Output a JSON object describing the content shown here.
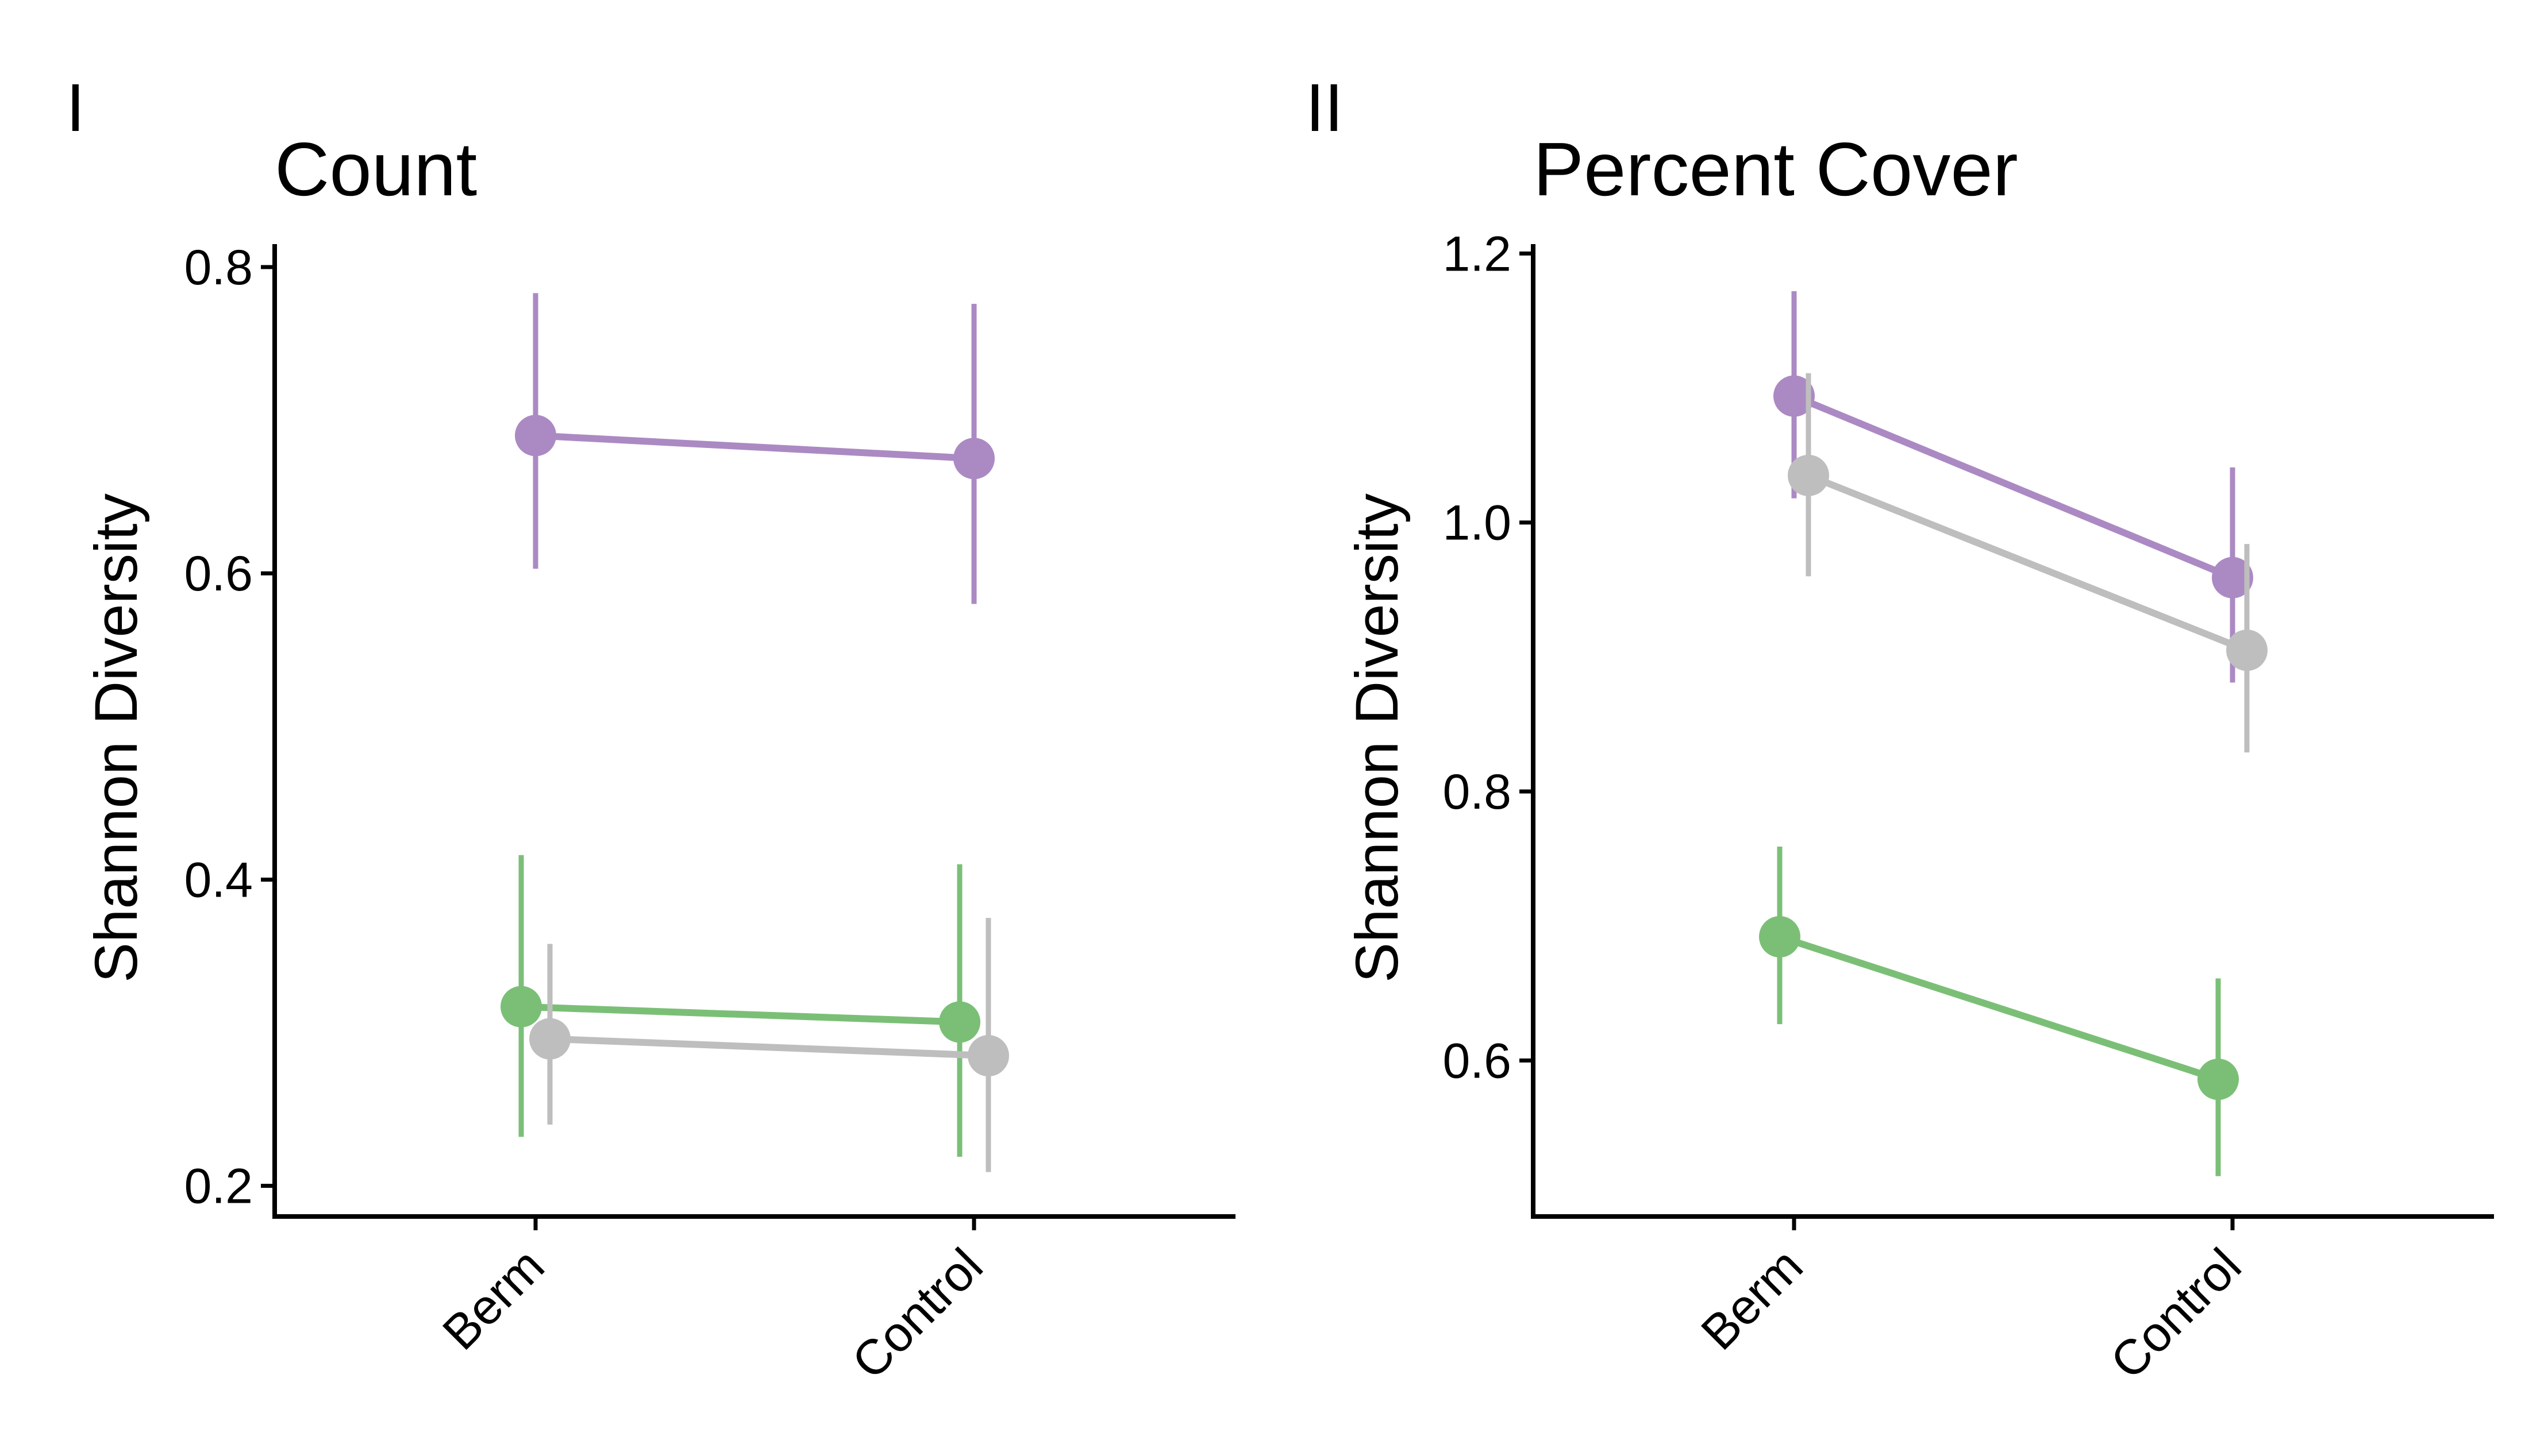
{
  "chart_data": [
    {
      "type": "line",
      "panel_label": "I",
      "title": "Count",
      "xlabel": "",
      "ylabel": "Shannon Diversity",
      "categories": [
        "Berm",
        "Control"
      ],
      "ylim": [
        0.18,
        0.815
      ],
      "yticks": [
        0.2,
        0.4,
        0.6,
        0.8
      ],
      "ytick_labels": [
        "0.2",
        "0.4",
        "0.6",
        "0.8"
      ],
      "grid": false,
      "legend": "none",
      "series": [
        {
          "color": "#ab8ac3",
          "dodge": 0,
          "values": [
            0.69,
            0.675
          ],
          "lower": [
            0.603,
            0.58
          ],
          "upper": [
            0.783,
            0.776
          ]
        },
        {
          "color": "#7bbf77",
          "dodge": -1,
          "values": [
            0.317,
            0.307
          ],
          "lower": [
            0.232,
            0.219
          ],
          "upper": [
            0.416,
            0.41
          ]
        },
        {
          "color": "#bebebe",
          "dodge": 1,
          "values": [
            0.296,
            0.285
          ],
          "lower": [
            0.24,
            0.209
          ],
          "upper": [
            0.358,
            0.375
          ]
        }
      ]
    },
    {
      "type": "line",
      "panel_label": "II",
      "title": "Percent Cover",
      "xlabel": "",
      "ylabel": "Shannon Diversity",
      "categories": [
        "Berm",
        "Control"
      ],
      "ylim": [
        0.484,
        1.207
      ],
      "yticks": [
        0.6,
        0.8,
        1.0,
        1.2
      ],
      "ytick_labels": [
        "0.6",
        "0.8",
        "1.0",
        "1.2"
      ],
      "grid": false,
      "legend": "none",
      "series": [
        {
          "color": "#ab8ac3",
          "dodge": 0,
          "values": [
            1.094,
            0.959
          ],
          "lower": [
            1.018,
            0.881
          ],
          "upper": [
            1.172,
            1.041
          ]
        },
        {
          "color": "#bebebe",
          "dodge": 1,
          "values": [
            1.035,
            0.905
          ],
          "lower": [
            0.96,
            0.829
          ],
          "upper": [
            1.111,
            0.984
          ]
        },
        {
          "color": "#7bbf77",
          "dodge": -1,
          "values": [
            0.692,
            0.586
          ],
          "lower": [
            0.627,
            0.514
          ],
          "upper": [
            0.759,
            0.661
          ]
        }
      ]
    }
  ]
}
